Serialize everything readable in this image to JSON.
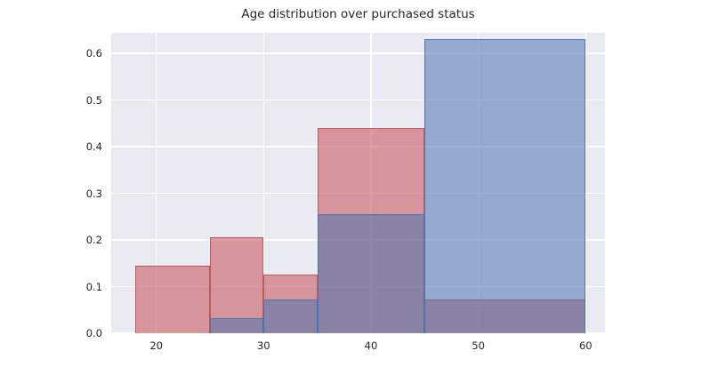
{
  "chart_data": {
    "type": "bar",
    "variant": "overlaid histogram (two distributions, translucent fill)",
    "title": "Age distribution over purchased status",
    "xlabel": "",
    "ylabel": "",
    "x_tick_labels": [
      "20",
      "30",
      "40",
      "50",
      "60"
    ],
    "y_tick_labels": [
      "0.0",
      "0.1",
      "0.2",
      "0.3",
      "0.4",
      "0.5",
      "0.6"
    ],
    "xlim": [
      15.8,
      61.8
    ],
    "ylim": [
      0,
      0.644
    ],
    "grid": true,
    "legend": false,
    "colors": {
      "plot_background": "#eaeaf2",
      "gridline": "#ffffff",
      "series_red": "#c44e52",
      "series_blue": "#4c72b0",
      "fill_alpha": 0.55,
      "edge_alpha": 0.9,
      "text": "#262626"
    },
    "series": [
      {
        "name": "red",
        "color": "#c44e52",
        "bars": [
          {
            "x0": 18,
            "x1": 25,
            "height": 0.145
          },
          {
            "x0": 25,
            "x1": 30,
            "height": 0.205
          },
          {
            "x0": 30,
            "x1": 35,
            "height": 0.125
          },
          {
            "x0": 35,
            "x1": 45,
            "height": 0.44
          },
          {
            "x0": 45,
            "x1": 60,
            "height": 0.073
          }
        ]
      },
      {
        "name": "blue",
        "color": "#4c72b0",
        "bars": [
          {
            "x0": 25,
            "x1": 30,
            "height": 0.032
          },
          {
            "x0": 30,
            "x1": 35,
            "height": 0.073
          },
          {
            "x0": 35,
            "x1": 45,
            "height": 0.255
          },
          {
            "x0": 45,
            "x1": 60,
            "height": 0.63
          }
        ]
      }
    ]
  }
}
